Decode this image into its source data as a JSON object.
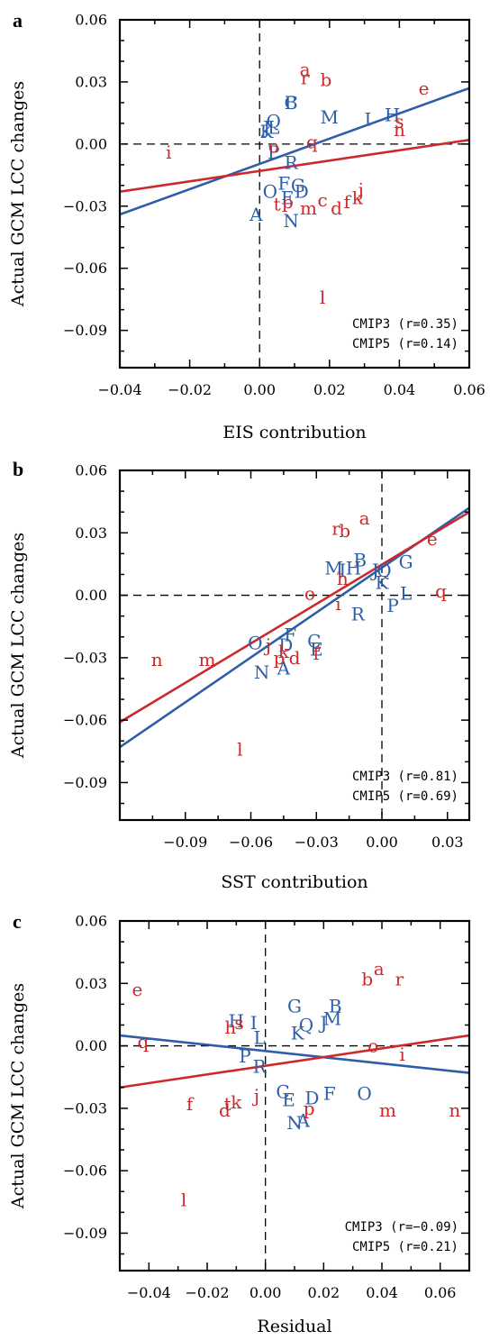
{
  "colors": {
    "cmip3": "#2e5ea8",
    "cmip5": "#cc2a2a",
    "axis": "#000000"
  },
  "chart_data": [
    {
      "type": "scatter",
      "panel": "a",
      "xlabel": "EIS contribution",
      "ylabel": "Actual GCM LCC changes",
      "xlim": [
        -0.04,
        0.06
      ],
      "ylim": [
        -0.108,
        0.06
      ],
      "xticks": [
        "−0.04",
        "−0.02",
        "0.00",
        "0.02",
        "0.04",
        "0.06"
      ],
      "yticks": [
        "0.06",
        "0.03",
        "0.00",
        "−0.03",
        "−0.06",
        "−0.09"
      ],
      "annotations": [
        "CMIP3 (r=0.35)",
        "CMIP5 (r=0.14)"
      ],
      "series": [
        {
          "name": "CMIP3",
          "points": [
            {
              "label": "A",
              "x": -0.001,
              "y": -0.034
            },
            {
              "label": "B",
              "x": 0.009,
              "y": 0.02
            },
            {
              "label": "C",
              "x": 0.009,
              "y": 0.02
            },
            {
              "label": "D",
              "x": 0.012,
              "y": -0.023
            },
            {
              "label": "E",
              "x": 0.008,
              "y": -0.026
            },
            {
              "label": "F",
              "x": 0.007,
              "y": -0.019
            },
            {
              "label": "G",
              "x": 0.011,
              "y": -0.02
            },
            {
              "label": "H",
              "x": 0.038,
              "y": 0.014
            },
            {
              "label": "I",
              "x": 0.031,
              "y": 0.012
            },
            {
              "label": "J",
              "x": 0.002,
              "y": 0.008
            },
            {
              "label": "K",
              "x": 0.002,
              "y": 0.006
            },
            {
              "label": "L",
              "x": 0.004,
              "y": 0.008
            },
            {
              "label": "M",
              "x": 0.02,
              "y": 0.013
            },
            {
              "label": "N",
              "x": 0.009,
              "y": -0.037
            },
            {
              "label": "O",
              "x": 0.003,
              "y": -0.023
            },
            {
              "label": "P",
              "x": 0.004,
              "y": -0.004
            },
            {
              "label": "Q",
              "x": 0.004,
              "y": 0.011
            },
            {
              "label": "R",
              "x": 0.009,
              "y": -0.009
            }
          ],
          "fit": {
            "x": [
              -0.04,
              0.06
            ],
            "y": [
              -0.034,
              0.027
            ]
          }
        },
        {
          "name": "CMIP5",
          "points": [
            {
              "label": "a",
              "x": 0.013,
              "y": 0.036
            },
            {
              "label": "b",
              "x": 0.019,
              "y": 0.031
            },
            {
              "label": "c",
              "x": 0.018,
              "y": -0.027
            },
            {
              "label": "d",
              "x": 0.022,
              "y": -0.031
            },
            {
              "label": "e",
              "x": 0.047,
              "y": 0.027
            },
            {
              "label": "f",
              "x": 0.025,
              "y": -0.028
            },
            {
              "label": "i",
              "x": -0.026,
              "y": -0.004
            },
            {
              "label": "j",
              "x": 0.029,
              "y": -0.022
            },
            {
              "label": "k",
              "x": 0.028,
              "y": -0.026
            },
            {
              "label": "l",
              "x": 0.018,
              "y": -0.074
            },
            {
              "label": "m",
              "x": 0.014,
              "y": -0.031
            },
            {
              "label": "n",
              "x": 0.04,
              "y": 0.007
            },
            {
              "label": "o",
              "x": 0.004,
              "y": -0.001
            },
            {
              "label": "p",
              "x": 0.008,
              "y": -0.028
            },
            {
              "label": "q",
              "x": 0.015,
              "y": 0.001
            },
            {
              "label": "r",
              "x": 0.013,
              "y": 0.032
            },
            {
              "label": "s",
              "x": 0.04,
              "y": 0.011
            },
            {
              "label": "t",
              "x": 0.005,
              "y": -0.029
            }
          ],
          "fit": {
            "x": [
              -0.04,
              0.06
            ],
            "y": [
              -0.023,
              0.002
            ]
          }
        }
      ]
    },
    {
      "type": "scatter",
      "panel": "b",
      "xlabel": "SST contribution",
      "ylabel": "Actual GCM LCC changes",
      "xlim": [
        -0.12,
        0.04
      ],
      "ylim": [
        -0.108,
        0.06
      ],
      "xticks": [
        "−0.09",
        "−0.06",
        "−0.03",
        "0.00",
        "0.03"
      ],
      "yticks": [
        "0.06",
        "0.03",
        "0.00",
        "−0.03",
        "−0.06",
        "−0.09"
      ],
      "annotations": [
        "CMIP3 (r=0.81)",
        "CMIP5 (r=0.69)"
      ],
      "series": [
        {
          "name": "CMIP3",
          "points": [
            {
              "label": "A",
              "x": -0.045,
              "y": -0.035
            },
            {
              "label": "B",
              "x": -0.01,
              "y": 0.017
            },
            {
              "label": "C",
              "x": -0.031,
              "y": -0.022
            },
            {
              "label": "D",
              "x": -0.044,
              "y": -0.024
            },
            {
              "label": "E",
              "x": -0.03,
              "y": -0.026
            },
            {
              "label": "F",
              "x": -0.042,
              "y": -0.019
            },
            {
              "label": "G",
              "x": 0.011,
              "y": 0.016
            },
            {
              "label": "H",
              "x": -0.013,
              "y": 0.013
            },
            {
              "label": "I",
              "x": -0.018,
              "y": 0.012
            },
            {
              "label": "J",
              "x": -0.003,
              "y": 0.012
            },
            {
              "label": "K",
              "x": 0.0,
              "y": 0.006
            },
            {
              "label": "L",
              "x": 0.011,
              "y": 0.001
            },
            {
              "label": "M",
              "x": -0.022,
              "y": 0.013
            },
            {
              "label": "N",
              "x": -0.055,
              "y": -0.037
            },
            {
              "label": "O",
              "x": -0.058,
              "y": -0.023
            },
            {
              "label": "P",
              "x": 0.005,
              "y": -0.005
            },
            {
              "label": "Q",
              "x": 0.001,
              "y": 0.012
            },
            {
              "label": "R",
              "x": -0.011,
              "y": -0.009
            }
          ],
          "fit": {
            "x": [
              -0.12,
              0.04
            ],
            "y": [
              -0.073,
              0.042
            ]
          }
        },
        {
          "name": "CMIP5",
          "points": [
            {
              "label": "a",
              "x": -0.008,
              "y": 0.037
            },
            {
              "label": "b",
              "x": -0.017,
              "y": 0.031
            },
            {
              "label": "d",
              "x": -0.04,
              "y": -0.03
            },
            {
              "label": "e",
              "x": 0.023,
              "y": 0.027
            },
            {
              "label": "f",
              "x": -0.03,
              "y": -0.028
            },
            {
              "label": "h",
              "x": -0.018,
              "y": 0.008
            },
            {
              "label": "i",
              "x": -0.02,
              "y": -0.004
            },
            {
              "label": "j",
              "x": -0.052,
              "y": -0.024
            },
            {
              "label": "k",
              "x": -0.045,
              "y": -0.027
            },
            {
              "label": "l",
              "x": -0.065,
              "y": -0.074
            },
            {
              "label": "m",
              "x": -0.08,
              "y": -0.031
            },
            {
              "label": "n",
              "x": -0.103,
              "y": -0.031
            },
            {
              "label": "o",
              "x": -0.033,
              "y": 0.001
            },
            {
              "label": "p",
              "x": -0.047,
              "y": -0.03
            },
            {
              "label": "q",
              "x": 0.027,
              "y": 0.002
            },
            {
              "label": "r",
              "x": -0.021,
              "y": 0.032
            }
          ],
          "fit": {
            "x": [
              -0.12,
              0.04
            ],
            "y": [
              -0.061,
              0.04
            ]
          }
        }
      ]
    },
    {
      "type": "scatter",
      "panel": "c",
      "xlabel": "Residual",
      "ylabel": "Actual GCM LCC changes",
      "xlim": [
        -0.05,
        0.07
      ],
      "ylim": [
        -0.108,
        0.06
      ],
      "xticks": [
        "−0.04",
        "−0.02",
        "0.00",
        "0.02",
        "0.04",
        "0.06"
      ],
      "yticks": [
        "0.06",
        "0.03",
        "0.00",
        "−0.03",
        "−0.06",
        "−0.09"
      ],
      "annotations": [
        "CMIP3 (r=−0.09)",
        "CMIP5 (r=0.21)"
      ],
      "series": [
        {
          "name": "CMIP3",
          "points": [
            {
              "label": "A",
              "x": 0.013,
              "y": -0.036
            },
            {
              "label": "B",
              "x": 0.024,
              "y": 0.019
            },
            {
              "label": "C",
              "x": 0.006,
              "y": -0.022
            },
            {
              "label": "D",
              "x": 0.016,
              "y": -0.025
            },
            {
              "label": "E",
              "x": 0.008,
              "y": -0.026
            },
            {
              "label": "F",
              "x": 0.022,
              "y": -0.023
            },
            {
              "label": "G",
              "x": 0.01,
              "y": 0.019
            },
            {
              "label": "H",
              "x": -0.01,
              "y": 0.012
            },
            {
              "label": "I",
              "x": -0.004,
              "y": 0.011
            },
            {
              "label": "J",
              "x": 0.02,
              "y": 0.011
            },
            {
              "label": "K",
              "x": 0.011,
              "y": 0.006
            },
            {
              "label": "L",
              "x": -0.002,
              "y": 0.004
            },
            {
              "label": "M",
              "x": 0.023,
              "y": 0.013
            },
            {
              "label": "N",
              "x": 0.01,
              "y": -0.037
            },
            {
              "label": "O",
              "x": 0.034,
              "y": -0.023
            },
            {
              "label": "P",
              "x": -0.007,
              "y": -0.005
            },
            {
              "label": "Q",
              "x": 0.014,
              "y": 0.01
            },
            {
              "label": "R",
              "x": -0.002,
              "y": -0.01
            }
          ],
          "fit": {
            "x": [
              -0.05,
              0.07
            ],
            "y": [
              0.005,
              -0.013
            ]
          }
        },
        {
          "name": "CMIP5",
          "points": [
            {
              "label": "a",
              "x": 0.039,
              "y": 0.037
            },
            {
              "label": "b",
              "x": 0.035,
              "y": 0.032
            },
            {
              "label": "d",
              "x": -0.014,
              "y": -0.031
            },
            {
              "label": "e",
              "x": -0.044,
              "y": 0.027
            },
            {
              "label": "f",
              "x": -0.026,
              "y": -0.028
            },
            {
              "label": "h",
              "x": -0.012,
              "y": 0.009
            },
            {
              "label": "i",
              "x": 0.047,
              "y": -0.004
            },
            {
              "label": "j",
              "x": -0.003,
              "y": -0.024
            },
            {
              "label": "k",
              "x": -0.01,
              "y": -0.027
            },
            {
              "label": "l",
              "x": -0.028,
              "y": -0.074
            },
            {
              "label": "m",
              "x": 0.042,
              "y": -0.031
            },
            {
              "label": "n",
              "x": 0.065,
              "y": -0.031
            },
            {
              "label": "o",
              "x": 0.037,
              "y": 0.0
            },
            {
              "label": "p",
              "x": 0.015,
              "y": -0.03
            },
            {
              "label": "q",
              "x": -0.042,
              "y": 0.002
            },
            {
              "label": "r",
              "x": 0.046,
              "y": 0.032
            },
            {
              "label": "s",
              "x": -0.009,
              "y": 0.011
            },
            {
              "label": "t",
              "x": -0.013,
              "y": -0.028
            }
          ],
          "fit": {
            "x": [
              -0.05,
              0.07
            ],
            "y": [
              -0.02,
              0.005
            ]
          }
        }
      ]
    }
  ]
}
